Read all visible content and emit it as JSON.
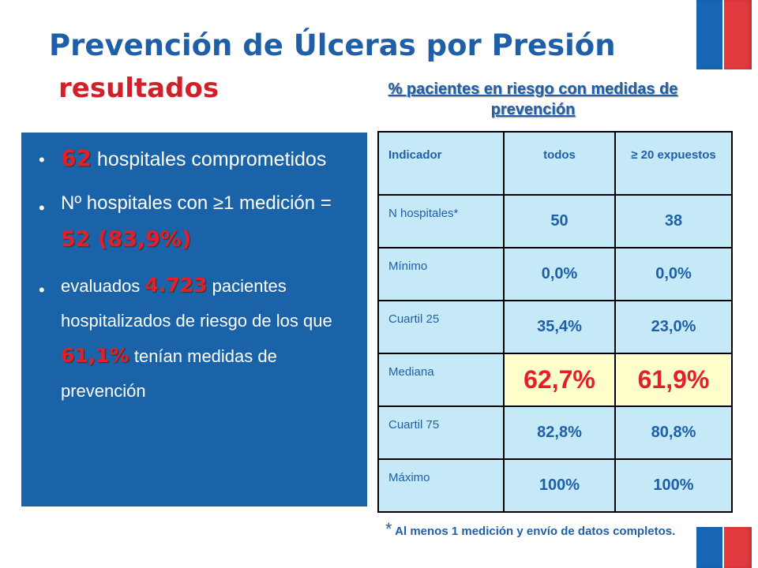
{
  "title": "Prevención de Úlceras por Presión",
  "subtitle": "resultados",
  "table_title": "% pacientes en riesgo con medidas de prevención",
  "bullets": {
    "b1": {
      "highlight": "62",
      "text": " hospitales comprometidos"
    },
    "b2": {
      "text_before": "Nº hospitales  con ≥1 medición = ",
      "highlight": "52 (83,9%)"
    },
    "b3": {
      "text1": "evaluados ",
      "highlight1": "4.723",
      "text2": " pacientes hospitalizados de riesgo de los que ",
      "highlight2": "61,1%",
      "text3": " tenían medidas de prevención"
    }
  },
  "table": {
    "headers": [
      "Indicador",
      "todos",
      "≥ 20 expuestos"
    ],
    "rows": [
      {
        "label": "N hospitales*",
        "todos": "50",
        "expuestos": "38"
      },
      {
        "label": "Mínimo",
        "todos": "0,0%",
        "expuestos": "0,0%"
      },
      {
        "label": "Cuartil 25",
        "todos": "35,4%",
        "expuestos": "23,0%"
      },
      {
        "label": "Mediana",
        "todos": "62,7%",
        "expuestos": "61,9%"
      },
      {
        "label": "Cuartil 75",
        "todos": "82,8%",
        "expuestos": "80,8%"
      },
      {
        "label": "Máximo",
        "todos": "100%",
        "expuestos": "100%"
      }
    ]
  },
  "footnote": {
    "star": "*",
    "text": " Al menos 1 medición y envío de datos completos."
  },
  "colors": {
    "title_blue": "#1f5fa8",
    "accent_red": "#e2202a",
    "panel_blue": "#1a63a8",
    "table_cell": "#c6e9f8",
    "highlight_cell": "#ffffcc",
    "flag_blue": "#1666b4",
    "flag_red": "#e23a3f"
  }
}
